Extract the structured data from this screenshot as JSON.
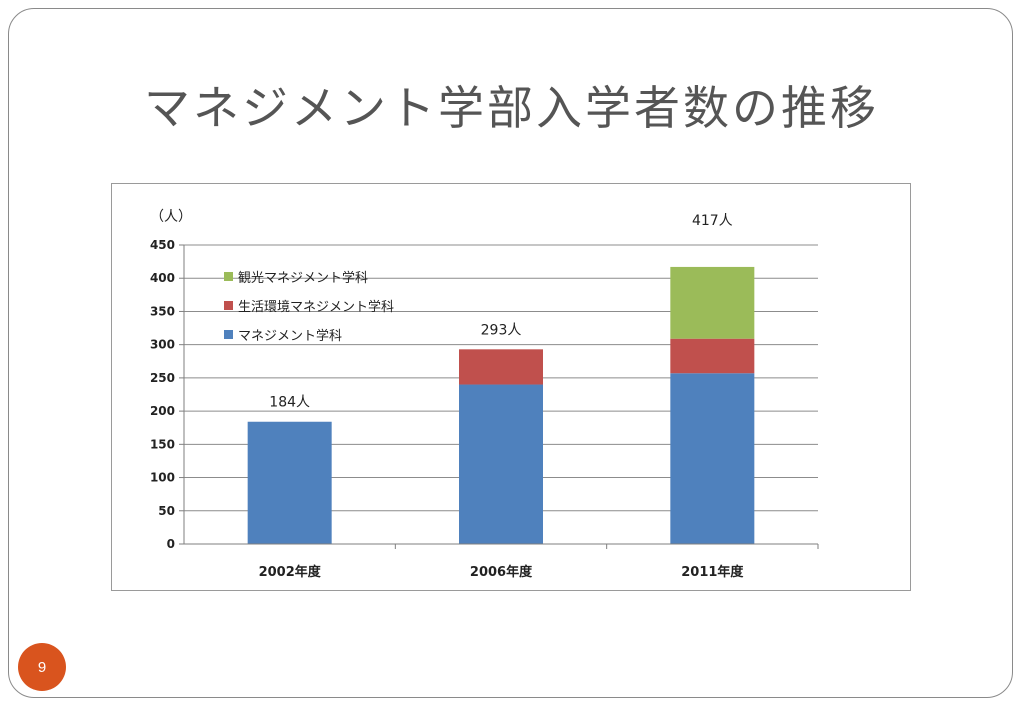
{
  "slide": {
    "title": "マネジメント学部入学者数の推移",
    "page_number": "9"
  },
  "chart_data": {
    "type": "bar",
    "stacked": true,
    "title": "",
    "xlabel": "",
    "ylabel": "（人）",
    "ylim": [
      0,
      450
    ],
    "yticks": [
      0,
      50,
      100,
      150,
      200,
      250,
      300,
      350,
      400,
      450
    ],
    "grid": true,
    "legend_position": "top-left",
    "categories": [
      "2002年度",
      "2006年度",
      "2011年度"
    ],
    "series": [
      {
        "name": "マネジメント学科",
        "color": "#4f81bd",
        "values": [
          184,
          240,
          257
        ]
      },
      {
        "name": "生活環境マネジメント学科",
        "color": "#c0504d",
        "values": [
          0,
          53,
          52
        ]
      },
      {
        "name": "観光マネジメント学科",
        "color": "#9bbb59",
        "values": [
          0,
          0,
          108
        ]
      }
    ],
    "totals": [
      184,
      293,
      417
    ],
    "total_labels": [
      "184人",
      "293人",
      "417人"
    ]
  }
}
